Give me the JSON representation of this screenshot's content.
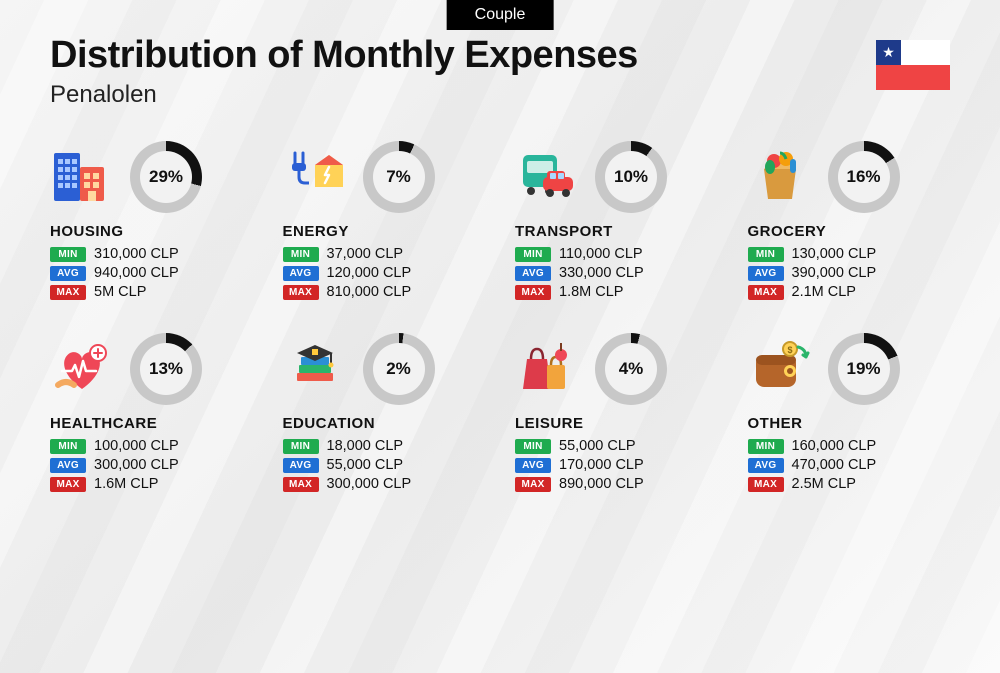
{
  "tab_label": "Couple",
  "title": "Distribution of Monthly Expenses",
  "subtitle": "Penalolen",
  "flag": {
    "blue": "#1e3a8a",
    "white": "#ffffff",
    "red": "#ef4444",
    "star": "★"
  },
  "badges": {
    "min": {
      "label": "MIN",
      "bg": "#1fab4f"
    },
    "avg": {
      "label": "AVG",
      "bg": "#1f6fd4"
    },
    "max": {
      "label": "MAX",
      "bg": "#d22626"
    }
  },
  "ring": {
    "track": "#c8c8c8",
    "fill": "#111111",
    "inner_bg": "#f2f2f2"
  },
  "categories": [
    {
      "key": "housing",
      "name": "HOUSING",
      "pct": 29,
      "pct_label": "29%",
      "min": "310,000 CLP",
      "avg": "940,000 CLP",
      "max": "5M CLP",
      "icon": "housing"
    },
    {
      "key": "energy",
      "name": "ENERGY",
      "pct": 7,
      "pct_label": "7%",
      "min": "37,000 CLP",
      "avg": "120,000 CLP",
      "max": "810,000 CLP",
      "icon": "energy"
    },
    {
      "key": "transport",
      "name": "TRANSPORT",
      "pct": 10,
      "pct_label": "10%",
      "min": "110,000 CLP",
      "avg": "330,000 CLP",
      "max": "1.8M CLP",
      "icon": "transport"
    },
    {
      "key": "grocery",
      "name": "GROCERY",
      "pct": 16,
      "pct_label": "16%",
      "min": "130,000 CLP",
      "avg": "390,000 CLP",
      "max": "2.1M CLP",
      "icon": "grocery"
    },
    {
      "key": "healthcare",
      "name": "HEALTHCARE",
      "pct": 13,
      "pct_label": "13%",
      "min": "100,000 CLP",
      "avg": "300,000 CLP",
      "max": "1.6M CLP",
      "icon": "healthcare"
    },
    {
      "key": "education",
      "name": "EDUCATION",
      "pct": 2,
      "pct_label": "2%",
      "min": "18,000 CLP",
      "avg": "55,000 CLP",
      "max": "300,000 CLP",
      "icon": "education"
    },
    {
      "key": "leisure",
      "name": "LEISURE",
      "pct": 4,
      "pct_label": "4%",
      "min": "55,000 CLP",
      "avg": "170,000 CLP",
      "max": "890,000 CLP",
      "icon": "leisure"
    },
    {
      "key": "other",
      "name": "OTHER",
      "pct": 19,
      "pct_label": "19%",
      "min": "160,000 CLP",
      "avg": "470,000 CLP",
      "max": "2.5M CLP",
      "icon": "other"
    }
  ]
}
